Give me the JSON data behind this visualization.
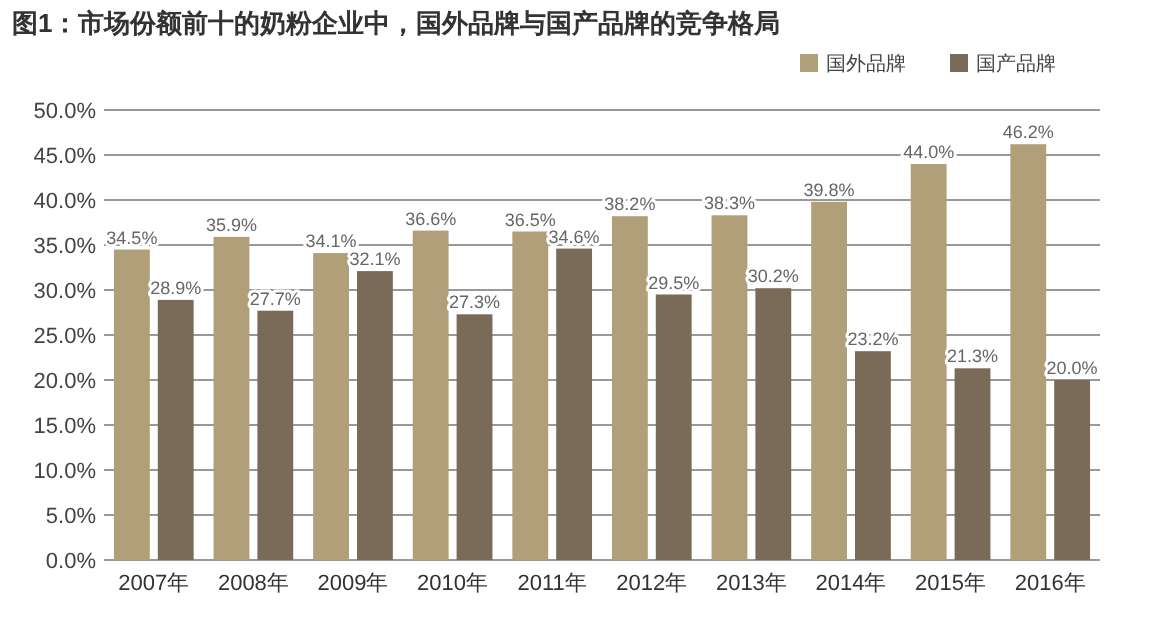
{
  "chart_data": {
    "type": "bar",
    "title": "图1：市场份额前十的奶粉企业中，国外品牌与国产品牌的竞争格局",
    "categories": [
      "2007年",
      "2008年",
      "2009年",
      "2010年",
      "2011年",
      "2012年",
      "2013年",
      "2014年",
      "2015年",
      "2016年"
    ],
    "series": [
      {
        "name": "国外品牌",
        "color": "#b09f78",
        "values": [
          34.5,
          35.9,
          34.1,
          36.6,
          36.5,
          38.2,
          38.3,
          39.8,
          44.0,
          46.2
        ],
        "value_labels": [
          "34.5%",
          "35.9%",
          "34.1%",
          "36.6%",
          "36.5%",
          "38.2%",
          "38.3%",
          "39.8%",
          "44.0%",
          "46.2%"
        ]
      },
      {
        "name": "国产品牌",
        "color": "#7a6a58",
        "values": [
          28.9,
          27.7,
          32.1,
          27.3,
          34.6,
          29.5,
          30.2,
          23.2,
          21.3,
          20.0
        ],
        "value_labels": [
          "28.9%",
          "27.7%",
          "32.1%",
          "27.3%",
          "34.6%",
          "29.5%",
          "30.2%",
          "23.2%",
          "21.3%",
          "20.0%"
        ]
      }
    ],
    "ylim": [
      0,
      50
    ],
    "yticks": [
      {
        "value": 0,
        "label": "0.0%"
      },
      {
        "value": 5,
        "label": "5.0%"
      },
      {
        "value": 10,
        "label": "10.0%"
      },
      {
        "value": 15,
        "label": "15.0%"
      },
      {
        "value": 20,
        "label": "20.0%"
      },
      {
        "value": 25,
        "label": "25.0%"
      },
      {
        "value": 30,
        "label": "30.0%"
      },
      {
        "value": 35,
        "label": "35.0%"
      },
      {
        "value": 40,
        "label": "40.0%"
      },
      {
        "value": 45,
        "label": "45.0%"
      },
      {
        "value": 50,
        "label": "50.0%"
      }
    ],
    "grid": "y",
    "legend": "top right"
  }
}
